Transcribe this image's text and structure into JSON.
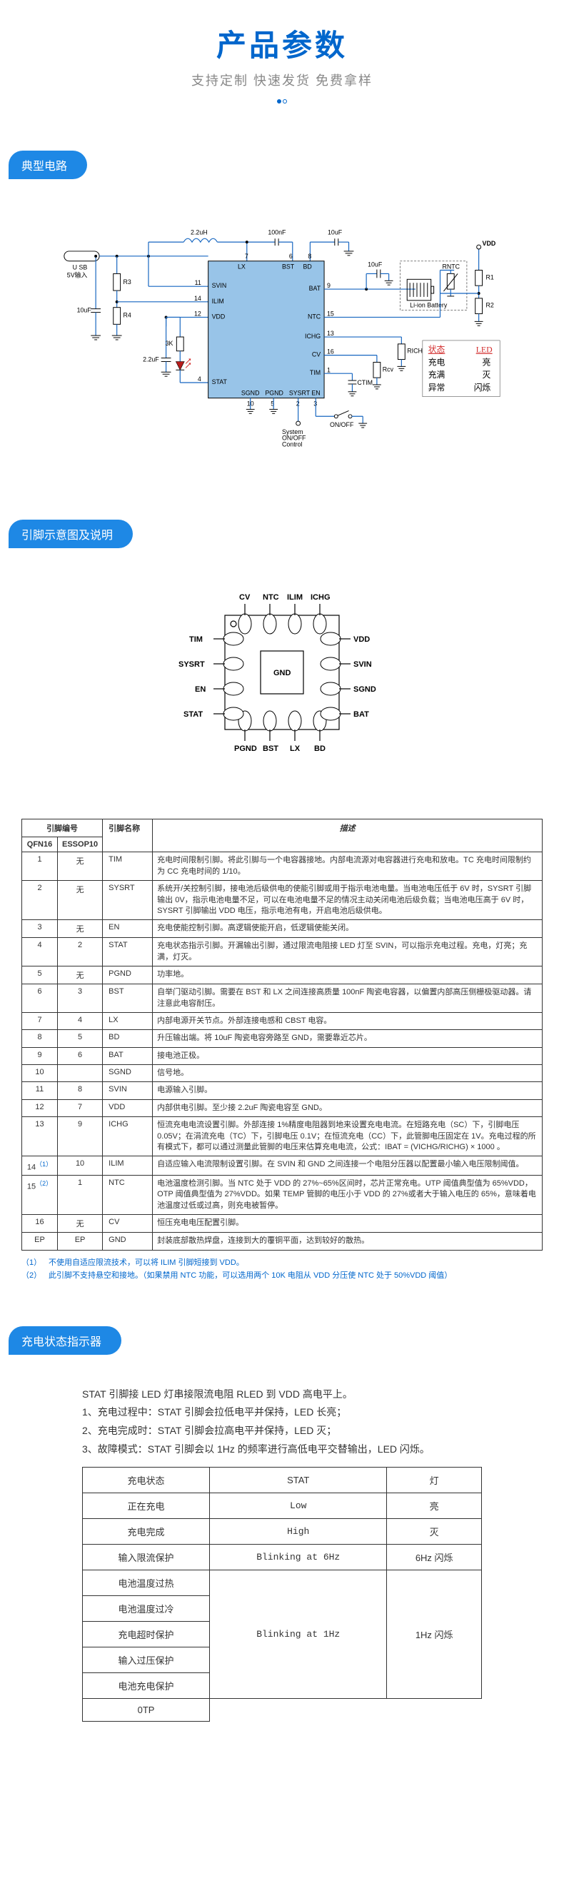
{
  "header": {
    "title": "产品参数",
    "subtitle": "支持定制 快速发货 免费拿样"
  },
  "sections": {
    "circuit": "典型电路",
    "pinout": "引脚示意图及说明",
    "status": "充电状态指示器"
  },
  "circuit": {
    "usb_label": "U SB",
    "usb_sub": "5V输入",
    "inductor": "2.2uH",
    "cap1": "100nF",
    "cap2": "10uF",
    "cap3": "10uF",
    "cap4": "10uF",
    "cap5": "2.2uF",
    "vdd": "VDD",
    "r3": "R3",
    "r4": "R4",
    "r1": "R1",
    "r2": "R2",
    "rntc": "RNTC",
    "rcv": "Rcv",
    "richg": "RICHG",
    "ctim": "CTIM",
    "res3k": "3K",
    "batt": "Li-ion Battery",
    "pins": {
      "svin": "SVIN",
      "ilim": "ILIM",
      "vdd_p": "VDD",
      "lx": "LX",
      "bst": "BST",
      "bd": "BD",
      "bat": "BAT",
      "ntc": "NTC",
      "ichg": "ICHG",
      "cv": "CV",
      "tim": "TIM",
      "stat": "STAT",
      "sgnd": "SGND",
      "pgnd": "PGND",
      "sysrt": "SYSRT",
      "en": "EN"
    },
    "pin_nums": {
      "p11": "11",
      "p14": "14",
      "p12": "12",
      "p7": "7",
      "p8": "8",
      "p9": "9",
      "p15": "15",
      "p13": "13",
      "p16": "16",
      "p1": "1",
      "p4": "4",
      "p10": "10",
      "p5": "5",
      "p2": "2",
      "p3": "3",
      "p6": "6"
    },
    "sys_ctrl": "System\nON/OFF\nControl",
    "onoff": "ON/OFF",
    "led_box": {
      "hdr_state": "状态",
      "hdr_led": "LED",
      "row1_s": "充电",
      "row1_l": "亮",
      "row2_s": "充满",
      "row2_l": "灭",
      "row3_s": "异常",
      "row3_l": "闪烁"
    }
  },
  "pinout_labels": {
    "top": [
      "CV",
      "NTC",
      "ILIM",
      "ICHG"
    ],
    "left": [
      "TIM",
      "SYSRT",
      "EN",
      "STAT"
    ],
    "right": [
      "VDD",
      "SVIN",
      "SGND",
      "BAT"
    ],
    "bottom": [
      "PGND",
      "BST",
      "LX",
      "BD"
    ],
    "center": "GND"
  },
  "pin_table": {
    "hdr_group": "引脚编号",
    "hdr_qfn": "QFN16",
    "hdr_essop": "ESSOP10",
    "hdr_name": "引脚名称",
    "hdr_desc": "描述",
    "rows": [
      {
        "qfn": "1",
        "essop": "无",
        "name": "TIM",
        "desc": "充电时间限制引脚。将此引脚与一个电容器接地。内部电流源对电容器进行充电和放电。TC 充电时间限制约为 CC 充电时间的 1/10。"
      },
      {
        "qfn": "2",
        "essop": "无",
        "name": "SYSRT",
        "desc": "系统开/关控制引脚，接电池后级供电的使能引脚或用于指示电池电量。当电池电压低于 6V 时，SYSRT 引脚输出 0V，指示电池电量不足，可以在电池电量不足的情况主动关闭电池后级负载；当电池电压高于 6V 时，SYSRT 引脚输出 VDD 电压，指示电池有电，开启电池后级供电。"
      },
      {
        "qfn": "3",
        "essop": "无",
        "name": "EN",
        "desc": "充电使能控制引脚。高逻辑使能开启，低逻辑使能关闭。"
      },
      {
        "qfn": "4",
        "essop": "2",
        "name": "STAT",
        "desc": "充电状态指示引脚。开漏输出引脚，通过限流电阻接 LED 灯至 SVIN，可以指示充电过程。充电，灯亮；充满，灯灭。"
      },
      {
        "qfn": "5",
        "essop": "无",
        "name": "PGND",
        "desc": "功率地。"
      },
      {
        "qfn": "6",
        "essop": "3",
        "name": "BST",
        "desc": "自举门驱动引脚。需要在 BST 和 LX 之间连接高质量 100nF 陶瓷电容器，以偏置内部高压侧栅极驱动器。请注意此电容耐压。"
      },
      {
        "qfn": "7",
        "essop": "4",
        "name": "LX",
        "desc": "内部电源开关节点。外部连接电感和 CBST 电容。"
      },
      {
        "qfn": "8",
        "essop": "5",
        "name": "BD",
        "desc": "升压输出端。将 10uF 陶瓷电容旁路至 GND，需要靠近芯片。"
      },
      {
        "qfn": "9",
        "essop": "6",
        "name": "BAT",
        "desc": "接电池正极。"
      },
      {
        "qfn": "10",
        "essop": "",
        "name": "SGND",
        "desc": "信号地。"
      },
      {
        "qfn": "11",
        "essop": "8",
        "name": "SVIN",
        "desc": "电源输入引脚。"
      },
      {
        "qfn": "12",
        "essop": "7",
        "name": "VDD",
        "desc": "内部供电引脚。至少接 2.2uF 陶瓷电容至 GND。"
      },
      {
        "qfn": "13",
        "essop": "9",
        "name": "ICHG",
        "desc": "恒流充电电流设置引脚。外部连接 1%精度电阻器到地来设置充电电流。在短路充电（SC）下，引脚电压 0.05V；在涓流充电（TC）下，引脚电压 0.1V；在恒流充电（CC）下，此管脚电压固定在 1V。充电过程的所有模式下，都可以通过测量此管脚的电压来估算充电电流，公式：IBAT = (VICHG/RICHG) × 1000 。"
      },
      {
        "qfn": "14",
        "sup": "（1）",
        "essop": "10",
        "name": "ILIM",
        "desc": "自适应输入电流限制设置引脚。在 SVIN 和 GND 之间连接一个电阻分压器以配置最小输入电压限制阈值。"
      },
      {
        "qfn": "15",
        "sup": "（2）",
        "essop": "1",
        "name": "NTC",
        "desc": "电池温度检测引脚。当 NTC 处于 VDD 的 27%~65%区间时，芯片正常充电。UTP 阈值典型值为 65%VDD，OTP 阈值典型值为 27%VDD。如果 TEMP 管脚的电压小于 VDD 的  27%或者大于输入电压的 65%，意味着电池温度过低或过高，则充电被暂停。"
      },
      {
        "qfn": "16",
        "essop": "无",
        "name": "CV",
        "desc": "恒压充电电压配置引脚。"
      },
      {
        "qfn": "EP",
        "essop": "EP",
        "name": "GND",
        "desc": "封装底部散热焊盘，连接到大的覆铜平面，达到较好的散热。"
      }
    ]
  },
  "footnotes": [
    {
      "idx": "（1）",
      "text": "不使用自适应限流技术，可以将 ILIM 引脚短接到 VDD。"
    },
    {
      "idx": "（2）",
      "text": "此引脚不支持悬空和接地。（如果禁用 NTC 功能，可以选用两个 10K 电阻从 VDD 分压使 NTC 处于 50%VDD 阈值）"
    }
  ],
  "status": {
    "intro": "STAT 引脚接 LED 灯串接限流电阻 RLED 到 VDD 高电平上。",
    "line1": "1、充电过程中：STAT 引脚会拉低电平并保持，LED 长亮；",
    "line2": "2、充电完成时：STAT 引脚会拉高电平并保持，LED 灭；",
    "line3": "3、故障模式：STAT 引脚会以 1Hz 的频率进行高低电平交替输出，LED 闪烁。",
    "table": {
      "hdr_state": "充电状态",
      "hdr_stat": "STAT",
      "hdr_led": "灯",
      "rows": [
        {
          "state": "正在充电",
          "stat": "Low",
          "led": "亮"
        },
        {
          "state": "充电完成",
          "stat": "High",
          "led": "灭"
        },
        {
          "state": "输入限流保护",
          "stat": "Blinking at 6Hz",
          "led": "6Hz 闪烁"
        },
        {
          "state": "电池温度过热",
          "stat": "Blinking at 1Hz",
          "led": "1Hz 闪烁",
          "rowspan": 5
        },
        {
          "state": "电池温度过冷"
        },
        {
          "state": "充电超时保护"
        },
        {
          "state": "输入过压保护"
        },
        {
          "state": "电池充电保护"
        },
        {
          "state": "0TP"
        }
      ]
    }
  },
  "colors": {
    "brand_blue": "#0066cc",
    "tag_blue": "#1e88e5",
    "chip_fill": "#98c4e8",
    "led_red": "#d32f2f",
    "dashed": "#555"
  }
}
